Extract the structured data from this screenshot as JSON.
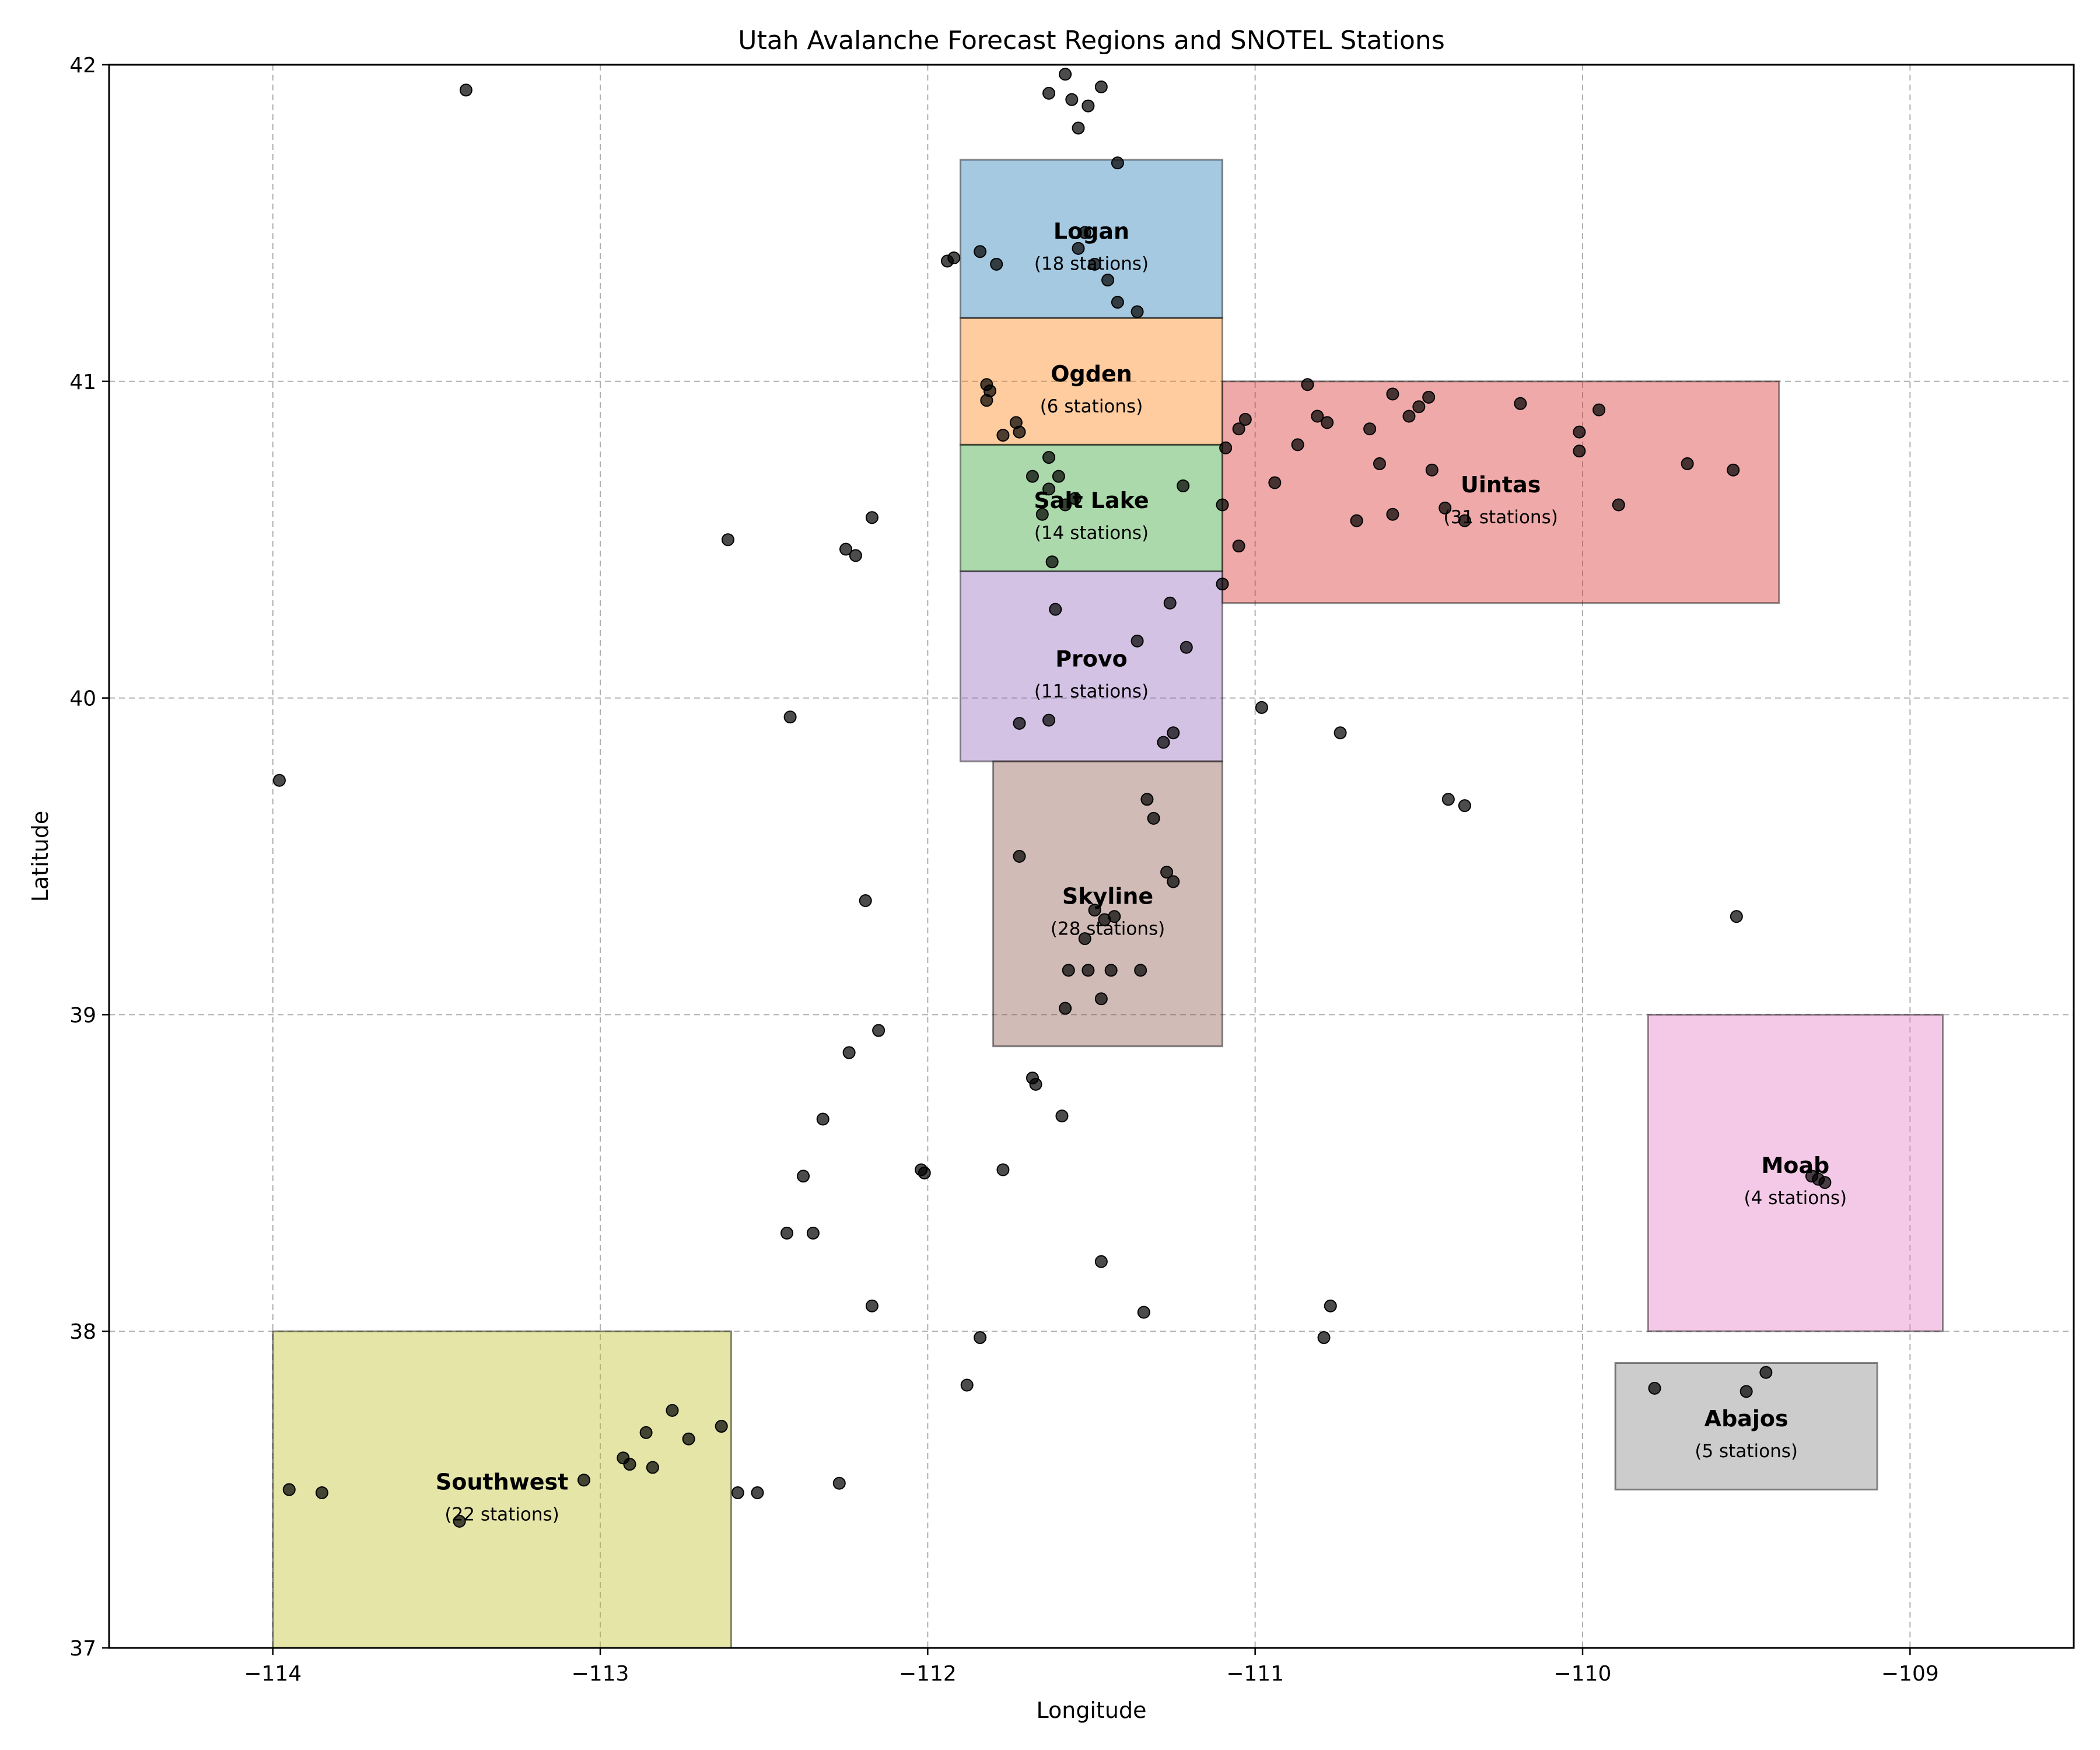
{
  "chart_data": {
    "type": "scatter",
    "title": "Utah Avalanche Forecast Regions and SNOTEL Stations",
    "xlabel": "Longitude",
    "ylabel": "Latitude",
    "xlim": [
      -114.5,
      -108.5
    ],
    "ylim": [
      37,
      42
    ],
    "xticks": [
      -114,
      -113,
      -112,
      -111,
      -110,
      -109
    ],
    "yticks": [
      37,
      38,
      39,
      40,
      41,
      42
    ],
    "xtick_labels": [
      "−114",
      "−113",
      "−112",
      "−111",
      "−110",
      "−109"
    ],
    "ytick_labels": [
      "37",
      "38",
      "39",
      "40",
      "41",
      "42"
    ],
    "grid": true,
    "regions": [
      {
        "name": "Logan",
        "count_label": "(18 stations)",
        "lon": [
          -111.9,
          -111.1
        ],
        "lat": [
          41.2,
          41.7
        ],
        "color": "#1f77b4"
      },
      {
        "name": "Ogden",
        "count_label": "(6 stations)",
        "lon": [
          -111.9,
          -111.1
        ],
        "lat": [
          40.8,
          41.2
        ],
        "color": "#ff7f0e"
      },
      {
        "name": "Salt Lake",
        "count_label": "(14 stations)",
        "lon": [
          -111.9,
          -111.1
        ],
        "lat": [
          40.4,
          40.8
        ],
        "color": "#2ca02c"
      },
      {
        "name": "Uintas",
        "count_label": "(31 stations)",
        "lon": [
          -111.1,
          -109.4
        ],
        "lat": [
          40.3,
          41.0
        ],
        "color": "#d62728"
      },
      {
        "name": "Provo",
        "count_label": "(11 stations)",
        "lon": [
          -111.9,
          -111.1
        ],
        "lat": [
          39.8,
          40.4
        ],
        "color": "#9467bd"
      },
      {
        "name": "Skyline",
        "count_label": "(28 stations)",
        "lon": [
          -111.8,
          -111.1
        ],
        "lat": [
          38.9,
          39.8
        ],
        "color": "#8c564b"
      },
      {
        "name": "Moab",
        "count_label": "(4 stations)",
        "lon": [
          -109.8,
          -108.9
        ],
        "lat": [
          38.0,
          39.0
        ],
        "color": "#e377c2"
      },
      {
        "name": "Abajos",
        "count_label": "(5 stations)",
        "lon": [
          -109.9,
          -109.1
        ],
        "lat": [
          37.5,
          37.9
        ],
        "color": "#7f7f7f"
      },
      {
        "name": "Southwest",
        "count_label": "(22 stations)",
        "lon": [
          -114.0,
          -112.6
        ],
        "lat": [
          37.0,
          38.0
        ],
        "color": "#bcbd22"
      }
    ],
    "stations": [
      [
        -113.41,
        41.92
      ],
      [
        -111.58,
        41.97
      ],
      [
        -111.63,
        41.91
      ],
      [
        -111.56,
        41.89
      ],
      [
        -111.51,
        41.87
      ],
      [
        -111.47,
        41.93
      ],
      [
        -111.54,
        41.8
      ],
      [
        -111.42,
        41.69
      ],
      [
        -111.52,
        41.47
      ],
      [
        -111.54,
        41.42
      ],
      [
        -111.49,
        41.37
      ],
      [
        -111.45,
        41.32
      ],
      [
        -111.42,
        41.25
      ],
      [
        -111.36,
        41.22
      ],
      [
        -111.79,
        41.37
      ],
      [
        -111.84,
        41.41
      ],
      [
        -111.94,
        41.38
      ],
      [
        -111.92,
        41.39
      ],
      [
        -111.82,
        40.99
      ],
      [
        -111.81,
        40.97
      ],
      [
        -111.82,
        40.94
      ],
      [
        -111.73,
        40.87
      ],
      [
        -111.72,
        40.84
      ],
      [
        -111.77,
        40.83
      ],
      [
        -111.63,
        40.76
      ],
      [
        -111.68,
        40.7
      ],
      [
        -111.6,
        40.7
      ],
      [
        -111.63,
        40.66
      ],
      [
        -111.55,
        40.63
      ],
      [
        -111.58,
        40.61
      ],
      [
        -111.65,
        40.58
      ],
      [
        -111.62,
        40.43
      ],
      [
        -111.22,
        40.67
      ],
      [
        -111.1,
        40.61
      ],
      [
        -112.17,
        40.57
      ],
      [
        -112.61,
        40.5
      ],
      [
        -112.25,
        40.47
      ],
      [
        -112.22,
        40.45
      ],
      [
        -111.03,
        40.88
      ],
      [
        -111.05,
        40.85
      ],
      [
        -111.09,
        40.79
      ],
      [
        -110.84,
        40.99
      ],
      [
        -110.81,
        40.89
      ],
      [
        -110.78,
        40.87
      ],
      [
        -110.87,
        40.8
      ],
      [
        -110.94,
        40.68
      ],
      [
        -110.58,
        40.96
      ],
      [
        -110.47,
        40.95
      ],
      [
        -110.5,
        40.92
      ],
      [
        -110.53,
        40.89
      ],
      [
        -110.65,
        40.85
      ],
      [
        -110.62,
        40.74
      ],
      [
        -110.46,
        40.72
      ],
      [
        -110.58,
        40.58
      ],
      [
        -110.69,
        40.56
      ],
      [
        -110.42,
        40.6
      ],
      [
        -110.36,
        40.56
      ],
      [
        -110.19,
        40.93
      ],
      [
        -109.95,
        40.91
      ],
      [
        -110.01,
        40.84
      ],
      [
        -110.01,
        40.78
      ],
      [
        -109.68,
        40.74
      ],
      [
        -109.54,
        40.72
      ],
      [
        -109.89,
        40.61
      ],
      [
        -111.05,
        40.48
      ],
      [
        -111.1,
        40.36
      ],
      [
        -111.61,
        40.28
      ],
      [
        -111.26,
        40.3
      ],
      [
        -111.36,
        40.18
      ],
      [
        -111.21,
        40.16
      ],
      [
        -111.72,
        39.92
      ],
      [
        -111.63,
        39.93
      ],
      [
        -111.25,
        39.89
      ],
      [
        -111.28,
        39.86
      ],
      [
        -110.98,
        39.97
      ],
      [
        -110.74,
        39.89
      ],
      [
        -112.42,
        39.94
      ],
      [
        -113.98,
        39.74
      ],
      [
        -111.33,
        39.68
      ],
      [
        -111.31,
        39.62
      ],
      [
        -111.72,
        39.5
      ],
      [
        -111.27,
        39.45
      ],
      [
        -111.25,
        39.42
      ],
      [
        -111.49,
        39.33
      ],
      [
        -111.46,
        39.3
      ],
      [
        -111.43,
        39.31
      ],
      [
        -111.52,
        39.24
      ],
      [
        -111.57,
        39.14
      ],
      [
        -111.51,
        39.14
      ],
      [
        -111.44,
        39.14
      ],
      [
        -111.35,
        39.14
      ],
      [
        -111.47,
        39.05
      ],
      [
        -111.58,
        39.02
      ],
      [
        -110.41,
        39.68
      ],
      [
        -110.36,
        39.66
      ],
      [
        -109.53,
        39.31
      ],
      [
        -112.19,
        39.36
      ],
      [
        -112.15,
        38.95
      ],
      [
        -112.24,
        38.88
      ],
      [
        -111.68,
        38.8
      ],
      [
        -111.67,
        38.78
      ],
      [
        -111.59,
        38.68
      ],
      [
        -111.77,
        38.51
      ],
      [
        -112.02,
        38.51
      ],
      [
        -112.01,
        38.5
      ],
      [
        -112.32,
        38.67
      ],
      [
        -112.38,
        38.49
      ],
      [
        -112.43,
        38.31
      ],
      [
        -112.35,
        38.31
      ],
      [
        -111.47,
        38.22
      ],
      [
        -111.34,
        38.06
      ],
      [
        -112.17,
        38.08
      ],
      [
        -111.84,
        37.98
      ],
      [
        -111.88,
        37.83
      ],
      [
        -110.77,
        38.08
      ],
      [
        -110.79,
        37.98
      ],
      [
        -109.3,
        38.49
      ],
      [
        -109.28,
        38.48
      ],
      [
        -109.26,
        38.47
      ],
      [
        -109.78,
        37.82
      ],
      [
        -109.5,
        37.81
      ],
      [
        -109.44,
        37.87
      ],
      [
        -113.95,
        37.5
      ],
      [
        -113.85,
        37.49
      ],
      [
        -113.43,
        37.4
      ],
      [
        -113.05,
        37.53
      ],
      [
        -112.93,
        37.6
      ],
      [
        -112.91,
        37.58
      ],
      [
        -112.84,
        37.57
      ],
      [
        -112.86,
        37.68
      ],
      [
        -112.78,
        37.75
      ],
      [
        -112.73,
        37.66
      ],
      [
        -112.63,
        37.7
      ],
      [
        -112.58,
        37.49
      ],
      [
        -112.52,
        37.49
      ],
      [
        -112.27,
        37.52
      ]
    ]
  }
}
